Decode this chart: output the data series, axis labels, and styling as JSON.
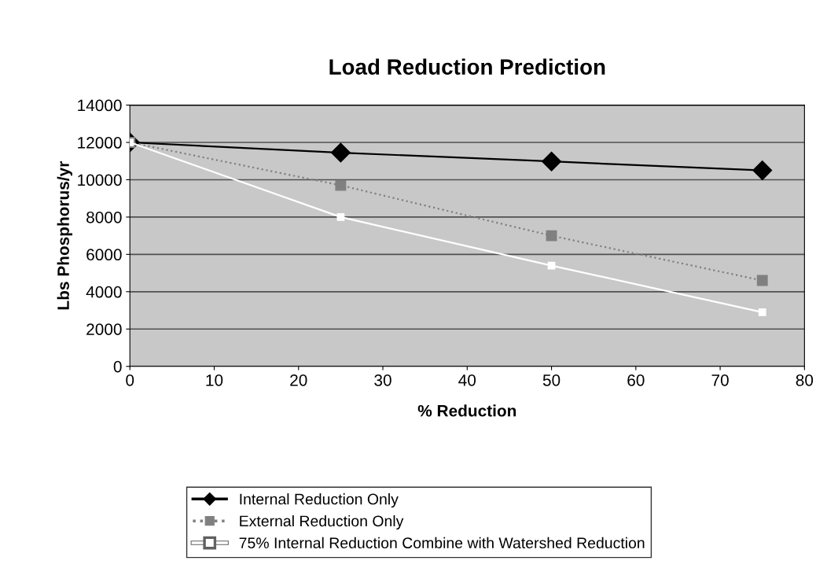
{
  "chart_data": {
    "type": "line",
    "title": "Load Reduction Prediction",
    "xlabel": "% Reduction",
    "ylabel": "Lbs Phosphorus/yr",
    "x": [
      0,
      25,
      50,
      75
    ],
    "series": [
      {
        "name": "Internal Reduction Only",
        "color": "#000000",
        "values": [
          12000,
          11450,
          10980,
          10500
        ],
        "marker": "diamond",
        "line_style": "solid"
      },
      {
        "name": "External Reduction Only",
        "color": "#808080",
        "values": [
          12000,
          9700,
          7000,
          4600
        ],
        "marker": "square",
        "line_style": "dotted"
      },
      {
        "name": "75% Internal Reduction Combine with Watershed Reduction",
        "color": "#ffffff",
        "values": [
          12000,
          8000,
          5400,
          2900
        ],
        "marker": "square",
        "line_style": "solid"
      }
    ],
    "xlim": [
      0,
      80
    ],
    "xticks": [
      0,
      10,
      20,
      30,
      40,
      50,
      60,
      70,
      80
    ],
    "ylim": [
      0,
      14000
    ],
    "yticks": [
      0,
      2000,
      4000,
      6000,
      8000,
      10000,
      12000,
      14000
    ],
    "grid": "y",
    "legend": "bottom"
  }
}
